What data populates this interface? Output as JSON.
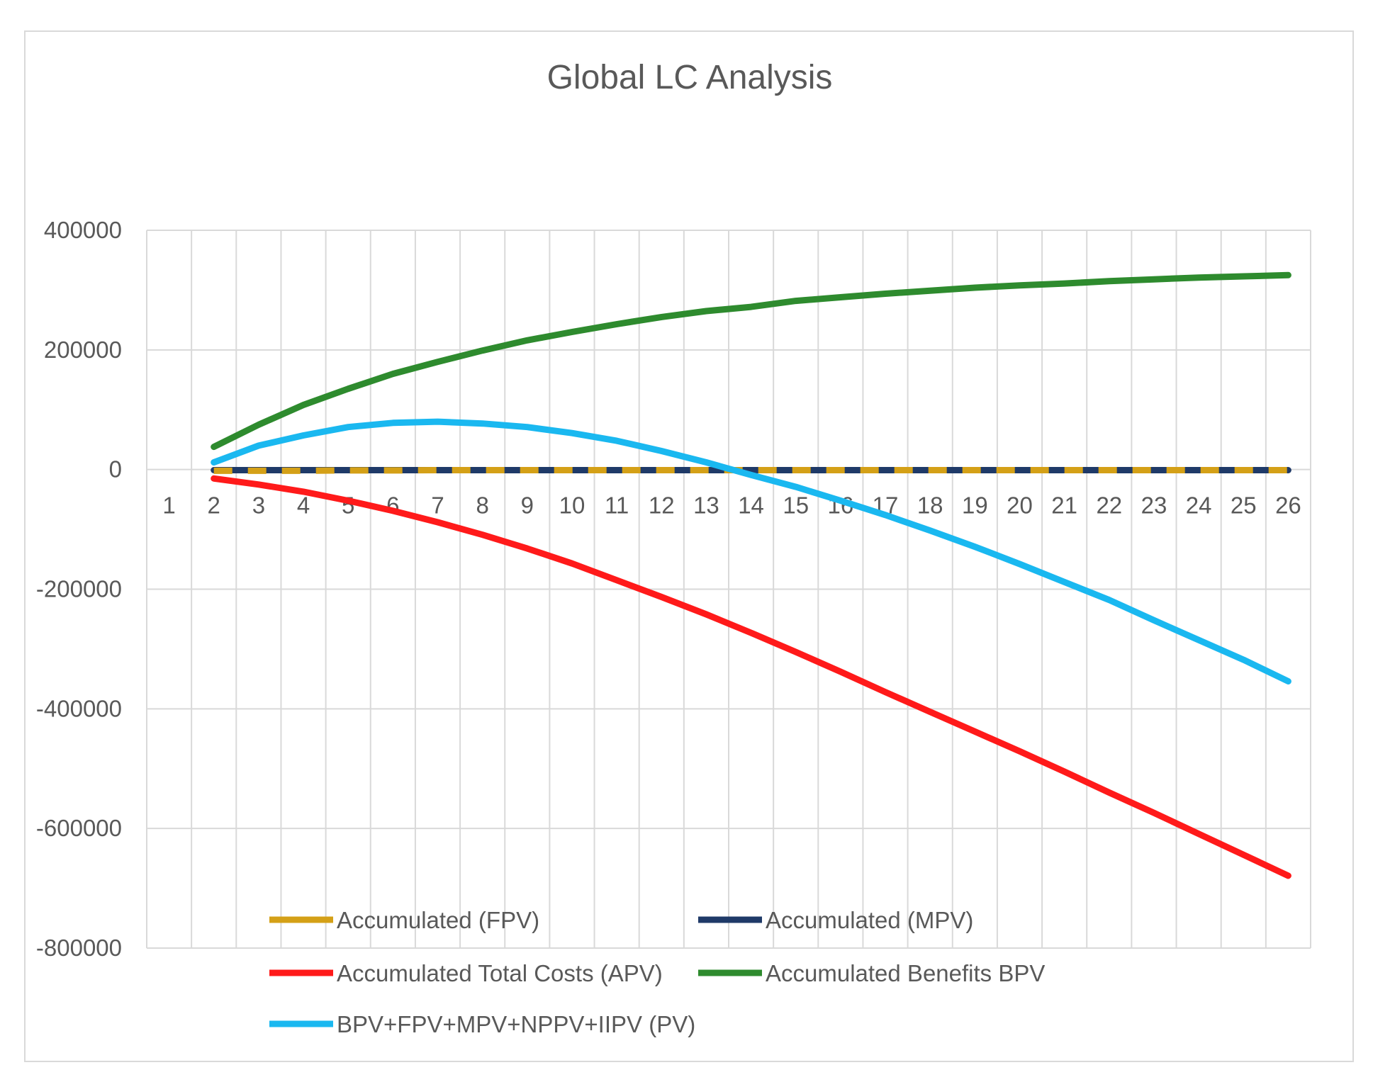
{
  "chart_data": {
    "type": "line",
    "title": "Global LC Analysis",
    "xlabel": "",
    "ylabel": "",
    "ylim": [
      -800000,
      400000
    ],
    "yticks": [
      400000,
      200000,
      0,
      -200000,
      -400000,
      -600000,
      -800000
    ],
    "ytick_labels": [
      "400000",
      "200000",
      "0",
      "-200000",
      "-400000",
      "-600000",
      "-800000"
    ],
    "categories": [
      "1",
      "2",
      "3",
      "4",
      "5",
      "6",
      "7",
      "8",
      "9",
      "10",
      "11",
      "12",
      "13",
      "14",
      "15",
      "16",
      "17",
      "18",
      "19",
      "20",
      "21",
      "22",
      "23",
      "24",
      "25",
      "26"
    ],
    "grid": true,
    "legend_position": "bottom",
    "series": [
      {
        "name": "Accumulated (FPV)",
        "color": "#d4a017",
        "dashed": true,
        "values": [
          null,
          -2000,
          -2000,
          -2000,
          -1500,
          -1500,
          -1000,
          -1000,
          -1000,
          -1000,
          -1000,
          -1000,
          -1000,
          -1000,
          -1000,
          -1000,
          -1000,
          -1000,
          -1000,
          -1000,
          -1000,
          -1000,
          -1000,
          -1000,
          -1000,
          -1000
        ]
      },
      {
        "name": "Accumulated (MPV)",
        "color": "#1f3a68",
        "dashed": false,
        "values": [
          null,
          -1000,
          -1000,
          -1000,
          -1000,
          -1000,
          -1000,
          -1000,
          -1000,
          -1000,
          -1000,
          -1000,
          -1000,
          -1000,
          -1000,
          -1000,
          -1000,
          -1000,
          -1000,
          -1000,
          -1000,
          -1000,
          -1000,
          -1000,
          -1000,
          -1000
        ]
      },
      {
        "name": "Accumulated Total Costs (APV)",
        "color": "#ff1a1a",
        "dashed": false,
        "values": [
          null,
          -15000,
          -25000,
          -37000,
          -52000,
          -69000,
          -88000,
          -109000,
          -132000,
          -157000,
          -185000,
          -213000,
          -242000,
          -273000,
          -305000,
          -338000,
          -372000,
          -405000,
          -438000,
          -471000,
          -505000,
          -540000,
          -574000,
          -609000,
          -644000,
          -679000
        ]
      },
      {
        "name": "Accumulated Benefits BPV",
        "color": "#2e8b2e",
        "dashed": false,
        "values": [
          null,
          38000,
          75000,
          108000,
          135000,
          160000,
          180000,
          199000,
          216000,
          230000,
          243000,
          255000,
          265000,
          272000,
          282000,
          288000,
          294000,
          299000,
          304000,
          308000,
          311000,
          315000,
          318000,
          321000,
          323000,
          325000
        ]
      },
      {
        "name": "BPV+FPV+MPV+NPPV+IIPV (PV)",
        "color": "#1ab8f0",
        "dashed": false,
        "values": [
          null,
          12000,
          40000,
          57000,
          71000,
          78000,
          80000,
          77000,
          71000,
          61000,
          48000,
          31000,
          12000,
          -9000,
          -29000,
          -52000,
          -76000,
          -102000,
          -129000,
          -158000,
          -188000,
          -218000,
          -252000,
          -285000,
          -318000,
          -354000
        ]
      }
    ]
  }
}
